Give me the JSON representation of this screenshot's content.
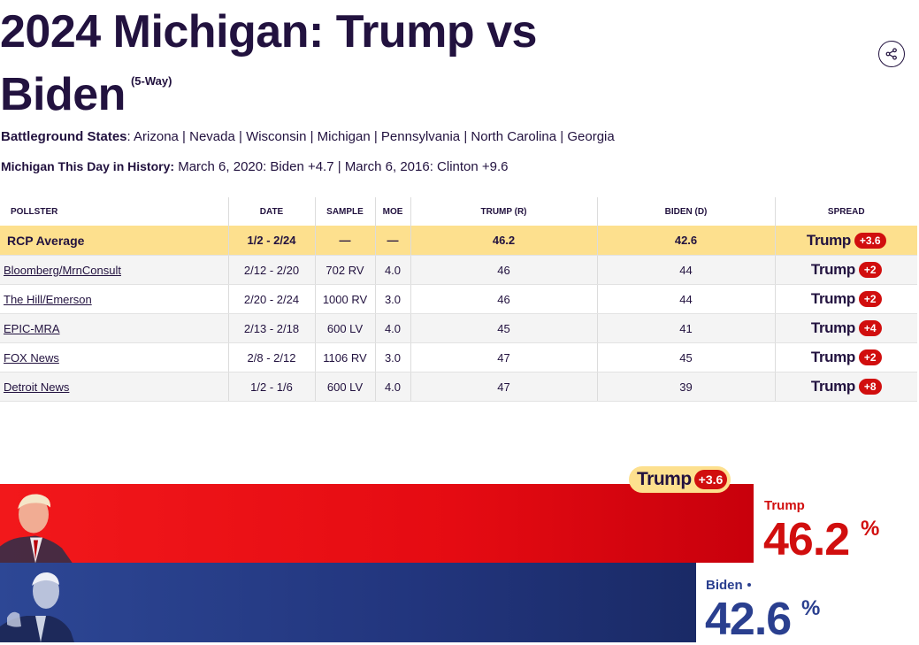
{
  "header": {
    "title": "2024 Michigan: Trump vs Biden",
    "subtitle": "(5-Way)",
    "share_icon": "share-icon"
  },
  "battleground": {
    "label": "Battleground States",
    "states": [
      "Arizona",
      "Nevada",
      "Wisconsin",
      "Michigan",
      "Pennsylvania",
      "North Carolina",
      "Georgia"
    ]
  },
  "history": {
    "label": "Michigan This Day in History:",
    "entries": [
      "March 6, 2020: Biden +4.7",
      "March 6, 2016: Clinton +9.6"
    ]
  },
  "table": {
    "headers": [
      "POLLSTER",
      "DATE",
      "SAMPLE",
      "MOE",
      "TRUMP (R)",
      "BIDEN (D)",
      "SPREAD"
    ],
    "rcp": {
      "pollster": "RCP Average",
      "date": "1/2 - 2/24",
      "sample": "—",
      "moe": "—",
      "trump": "46.2",
      "biden": "42.6",
      "spread_name": "Trump",
      "spread_value": "+3.6"
    },
    "rows": [
      {
        "pollster": "Bloomberg/MrnConsult",
        "date": "2/12 - 2/20",
        "sample": "702 RV",
        "moe": "4.0",
        "trump": "46",
        "biden": "44",
        "spread_name": "Trump",
        "spread_value": "+2"
      },
      {
        "pollster": "The Hill/Emerson",
        "date": "2/20 - 2/24",
        "sample": "1000 RV",
        "moe": "3.0",
        "trump": "46",
        "biden": "44",
        "spread_name": "Trump",
        "spread_value": "+2"
      },
      {
        "pollster": "EPIC-MRA",
        "date": "2/13 - 2/18",
        "sample": "600 LV",
        "moe": "4.0",
        "trump": "45",
        "biden": "41",
        "spread_name": "Trump",
        "spread_value": "+4"
      },
      {
        "pollster": "FOX News",
        "date": "2/8 - 2/12",
        "sample": "1106 RV",
        "moe": "3.0",
        "trump": "47",
        "biden": "45",
        "spread_name": "Trump",
        "spread_value": "+2"
      },
      {
        "pollster": "Detroit News",
        "date": "1/2 - 1/6",
        "sample": "600 LV",
        "moe": "4.0",
        "trump": "47",
        "biden": "39",
        "spread_name": "Trump",
        "spread_value": "+8"
      }
    ]
  },
  "results": {
    "leader_pill": {
      "name": "Trump",
      "value": "+3.6"
    },
    "trump": {
      "name": "Trump",
      "value": "46.2",
      "unit": "%",
      "color": "#d10e0e"
    },
    "biden": {
      "name": "Biden",
      "value": "42.6",
      "unit": "%",
      "color": "#2a3f8f"
    }
  },
  "colors": {
    "rcp_row": "#fde08e",
    "trump_red": "#e50b12",
    "biden_blue": "#22357d",
    "text": "#22123f"
  }
}
